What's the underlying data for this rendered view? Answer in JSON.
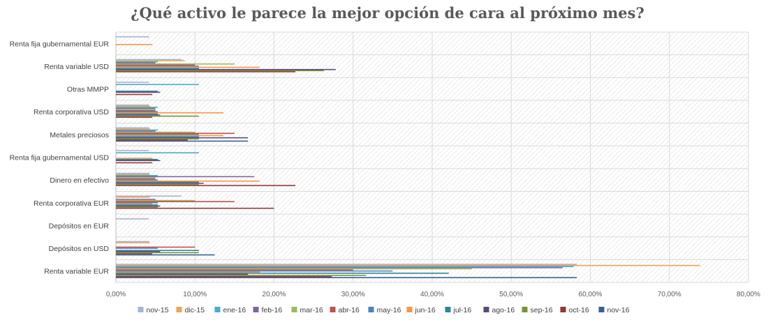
{
  "chart_data": {
    "type": "bar",
    "orientation": "horizontal",
    "title": "¿Qué activo le parece la mejor opción de cara al próximo mes?",
    "xlabel": "",
    "ylabel": "",
    "xlim": [
      0,
      80
    ],
    "x_ticks": [
      "0,00%",
      "10,00%",
      "20,00%",
      "30,00%",
      "40,00%",
      "50,00%",
      "60,00%",
      "70,00%",
      "80,00%"
    ],
    "grid": true,
    "legend_position": "bottom",
    "categories": [
      "Renta fija gubernamental EUR",
      "Renta variable USD",
      "Otras MMPP",
      "Renta corporativa USD",
      "Metales preciosos",
      "Renta fija gubernamental USD",
      "Dinero en efectivo",
      "Renta corporativa EUR",
      "Depósitos en EUR",
      "Depósitos en USD",
      "Renta variable EUR"
    ],
    "series": [
      {
        "name": "nov-15",
        "color": "#a5b4d3",
        "values": [
          4.2,
          8.3,
          4.2,
          4.2,
          4.2,
          4.2,
          4.2,
          8.3,
          4.2,
          4.2,
          58.3
        ]
      },
      {
        "name": "dic-15",
        "color": "#f0a255",
        "values": [
          0,
          8.7,
          0,
          4.3,
          4.3,
          0,
          4.3,
          4.3,
          0,
          4.3,
          73.9
        ]
      },
      {
        "name": "ene-16",
        "color": "#4bacc6",
        "values": [
          0,
          5.3,
          10.5,
          5.3,
          5.3,
          10.5,
          5.3,
          0,
          0,
          0,
          57.9
        ]
      },
      {
        "name": "feb-16",
        "color": "#8064a2",
        "values": [
          0,
          5.0,
          0,
          5.0,
          5.0,
          0,
          17.5,
          5.0,
          0,
          0,
          56.5
        ]
      },
      {
        "name": "mar-16",
        "color": "#9bbb59",
        "values": [
          0,
          15.0,
          0,
          5.0,
          10.0,
          0,
          5.0,
          10.0,
          0,
          0,
          45.0
        ]
      },
      {
        "name": "abr-16",
        "color": "#c0504d",
        "values": [
          0,
          10.0,
          0,
          5.0,
          15.0,
          0,
          5.0,
          15.0,
          0,
          10.0,
          30.0
        ]
      },
      {
        "name": "may-16",
        "color": "#4f81bd",
        "values": [
          0,
          10.5,
          0,
          5.3,
          10.5,
          0,
          5.3,
          5.3,
          0,
          5.3,
          35.0
        ]
      },
      {
        "name": "jun-16",
        "color": "#f79646",
        "values": [
          4.6,
          18.2,
          0,
          13.6,
          13.6,
          4.6,
          18.2,
          4.6,
          0,
          0,
          18.2
        ]
      },
      {
        "name": "jul-16",
        "color": "#31859c",
        "values": [
          0,
          10.5,
          5.3,
          5.3,
          10.5,
          5.3,
          10.5,
          5.3,
          0,
          10.5,
          42.1
        ]
      },
      {
        "name": "ago-16",
        "color": "#5f497a",
        "values": [
          0,
          27.8,
          5.6,
          5.6,
          16.7,
          5.6,
          11.1,
          5.6,
          0,
          5.6,
          16.7
        ]
      },
      {
        "name": "sep-16",
        "color": "#77933c",
        "values": [
          0,
          26.3,
          0,
          10.5,
          10.5,
          0,
          10.5,
          5.3,
          0,
          10.5,
          31.6
        ]
      },
      {
        "name": "oct-16",
        "color": "#953735",
        "values": [
          0,
          22.7,
          4.6,
          4.6,
          9.1,
          4.6,
          22.7,
          20.0,
          0,
          4.6,
          27.3
        ]
      },
      {
        "name": "nov-16",
        "color": "#376092",
        "values": [
          0,
          0,
          0,
          0,
          16.7,
          0,
          0,
          0,
          0,
          12.5,
          58.3
        ]
      }
    ]
  }
}
